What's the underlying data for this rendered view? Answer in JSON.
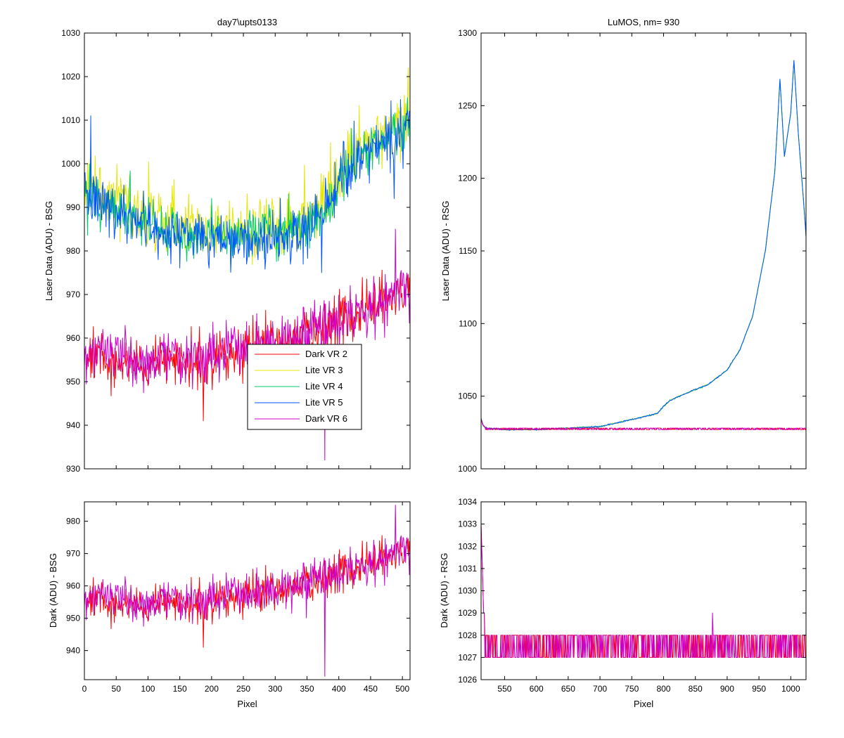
{
  "colors": {
    "background": "#ffffff",
    "axes": "#000000",
    "Dark VR 2": "#ff0000",
    "Lite VR 3": "#e6e600",
    "Lite VR 4": "#00cc66",
    "Lite VR 5": "#0055ff",
    "Dark VR 6": "#cc00cc",
    "mixed_dark": "#ee0077"
  },
  "chart_data": [
    {
      "id": "top-left",
      "type": "line",
      "title": "day7\\upts0133",
      "xlabel": "",
      "ylabel": "Laser Data (ADU) - BSG",
      "xlim": [
        0,
        512
      ],
      "ylim": [
        930,
        1030
      ],
      "xticks": [
        0,
        50,
        100,
        150,
        200,
        250,
        300,
        350,
        400,
        450,
        500
      ],
      "yticks": [
        930,
        940,
        950,
        960,
        970,
        980,
        990,
        1000,
        1010,
        1020,
        1030
      ],
      "show_xtick_labels": false,
      "grid": false,
      "legend": {
        "placement": "center",
        "entries": [
          "Dark VR 2",
          "Lite VR 3",
          "Lite VR 4",
          "Lite VR 5",
          "Dark VR 6"
        ]
      },
      "series": [
        {
          "name": "Dark VR 2",
          "profile": {
            "x": [
              0,
              100,
              200,
              300,
              350,
              400,
              450,
              500,
              512
            ],
            "y": [
              956,
              954,
              955,
              959,
              961,
              963,
              967,
              970,
              971
            ]
          },
          "noise": 5
        },
        {
          "name": "Lite VR 3",
          "profile": {
            "x": [
              0,
              50,
              100,
              150,
              200,
              250,
              300,
              350,
              380,
              400,
              450,
              500,
              512
            ],
            "y": [
              995,
              992,
              988,
              986,
              985,
              985,
              986,
              988,
              992,
              998,
              1004,
              1010,
              1012
            ]
          },
          "noise": 6
        },
        {
          "name": "Lite VR 4",
          "profile": {
            "x": [
              0,
              50,
              100,
              150,
              200,
              250,
              300,
              350,
              380,
              400,
              450,
              500,
              512
            ],
            "y": [
              993,
              990,
              986,
              984,
              983,
              983,
              984,
              986,
              990,
              996,
              1003,
              1008,
              1010
            ]
          },
          "noise": 5
        },
        {
          "name": "Lite VR 5",
          "profile": {
            "x": [
              0,
              50,
              100,
              150,
              200,
              250,
              300,
              350,
              380,
              400,
              450,
              500,
              512
            ],
            "y": [
              993,
              990,
              986,
              983,
              982,
              982,
              983,
              985,
              990,
              997,
              1003,
              1008,
              1010
            ]
          },
          "noise": 5
        },
        {
          "name": "Dark VR 6",
          "profile": {
            "x": [
              0,
              100,
              200,
              300,
              350,
              400,
              450,
              500,
              512
            ],
            "y": [
              957,
              955,
              956,
              959,
              961,
              964,
              967,
              971,
              972
            ]
          },
          "noise": 5
        }
      ],
      "annotations": {
        "spikes": [
          {
            "series": "Dark VR 6",
            "x": 378,
            "y": 932
          },
          {
            "series": "Dark VR 2",
            "x": 187,
            "y": 941
          },
          {
            "series": "Dark VR 6",
            "x": 489,
            "y": 985
          },
          {
            "series": "Lite VR 5",
            "x": 10,
            "y": 1011
          },
          {
            "series": "Lite VR 5",
            "x": 373,
            "y": 975
          },
          {
            "series": "Lite VR 5",
            "x": 487,
            "y": 992
          },
          {
            "series": "Lite VR 3",
            "x": 509,
            "y": 1022
          }
        ]
      }
    },
    {
      "id": "top-right",
      "type": "line",
      "title": "LuMOS, nm= 930",
      "xlabel": "",
      "ylabel": "Laser Data (ADU) - RSG",
      "xlim": [
        513,
        1024
      ],
      "ylim": [
        1000,
        1300
      ],
      "xticks": [
        550,
        600,
        650,
        700,
        750,
        800,
        850,
        900,
        950,
        1000
      ],
      "yticks": [
        1000,
        1050,
        1100,
        1150,
        1200,
        1250,
        1300
      ],
      "show_xtick_labels": false,
      "grid": false,
      "series": [
        {
          "name": "Lite VR 3",
          "profile": {
            "x": [
              513,
              516,
              520,
              550,
              600,
              650,
              700,
              740,
              790,
              800,
              810,
              830,
              870,
              900,
              920,
              940,
              960,
              975,
              983,
              990,
              1000,
              1005,
              1012,
              1020,
              1024
            ],
            "y": [
              1035,
              1030,
              1028,
              1027,
              1027,
              1028,
              1029,
              1033,
              1038,
              1043,
              1047,
              1051,
              1058,
              1068,
              1082,
              1105,
              1150,
              1205,
              1268,
              1215,
              1245,
              1281,
              1230,
              1185,
              1160
            ]
          },
          "noise": 0.4
        },
        {
          "name": "Lite VR 4",
          "profile": {
            "x": [
              513,
              516,
              520,
              550,
              600,
              650,
              700,
              740,
              790,
              800,
              810,
              830,
              870,
              900,
              920,
              940,
              960,
              975,
              983,
              990,
              1000,
              1005,
              1012,
              1020,
              1024
            ],
            "y": [
              1035,
              1030,
              1028,
              1027,
              1027,
              1028,
              1029,
              1033,
              1038,
              1043,
              1047,
              1051,
              1058,
              1068,
              1082,
              1105,
              1150,
              1205,
              1268,
              1215,
              1245,
              1281,
              1230,
              1185,
              1160
            ]
          },
          "noise": 0.4
        },
        {
          "name": "Lite VR 5",
          "profile": {
            "x": [
              513,
              516,
              520,
              550,
              600,
              650,
              700,
              740,
              790,
              800,
              810,
              830,
              870,
              900,
              920,
              940,
              960,
              975,
              983,
              990,
              1000,
              1005,
              1012,
              1020,
              1024
            ],
            "y": [
              1035,
              1030,
              1028,
              1027,
              1027,
              1028,
              1029,
              1033,
              1038,
              1043,
              1047,
              1051,
              1058,
              1068,
              1082,
              1105,
              1150,
              1205,
              1268,
              1215,
              1245,
              1281,
              1230,
              1185,
              1160
            ]
          },
          "noise": 0.4
        },
        {
          "name": "Dark VR 2",
          "profile": {
            "x": [
              513,
              516,
              520,
              530,
              1024
            ],
            "y": [
              1034,
              1030,
              1028,
              1027.5,
              1027.5
            ]
          },
          "noise": 0.5,
          "quantize": true
        },
        {
          "name": "Dark VR 6",
          "profile": {
            "x": [
              513,
              516,
              520,
              530,
              1024
            ],
            "y": [
              1034,
              1030,
              1028,
              1027.5,
              1027.5
            ]
          },
          "noise": 0.5,
          "quantize": true
        }
      ]
    },
    {
      "id": "bottom-left",
      "type": "line",
      "title": "",
      "xlabel": "Pixel",
      "ylabel": "Dark (ADU) - BSG",
      "xlim": [
        0,
        512
      ],
      "ylim": [
        931,
        986
      ],
      "xticks": [
        0,
        50,
        100,
        150,
        200,
        250,
        300,
        350,
        400,
        450,
        500
      ],
      "yticks": [
        940,
        950,
        960,
        970,
        980
      ],
      "show_xtick_labels": true,
      "grid": false,
      "series": [
        {
          "name": "Dark VR 2",
          "profile": {
            "x": [
              0,
              100,
              200,
              300,
              350,
              400,
              450,
              500,
              512
            ],
            "y": [
              956,
              954,
              955,
              959,
              961,
              963,
              967,
              970,
              971
            ]
          },
          "noise": 5
        },
        {
          "name": "Dark VR 6",
          "profile": {
            "x": [
              0,
              100,
              200,
              300,
              350,
              400,
              450,
              500,
              512
            ],
            "y": [
              957,
              955,
              956,
              959,
              961,
              964,
              967,
              971,
              972
            ]
          },
          "noise": 5
        }
      ],
      "annotations": {
        "spikes": [
          {
            "series": "Dark VR 6",
            "x": 378,
            "y": 932
          },
          {
            "series": "Dark VR 2",
            "x": 187,
            "y": 941
          },
          {
            "series": "Dark VR 6",
            "x": 489,
            "y": 985
          }
        ]
      }
    },
    {
      "id": "bottom-right",
      "type": "line",
      "title": "",
      "xlabel": "Pixel",
      "ylabel": "Dark (ADU) - RSG",
      "xlim": [
        513,
        1024
      ],
      "ylim": [
        1026,
        1034
      ],
      "xticks": [
        550,
        600,
        650,
        700,
        750,
        800,
        850,
        900,
        950,
        1000
      ],
      "yticks": [
        1026,
        1027,
        1028,
        1029,
        1030,
        1031,
        1032,
        1033,
        1034
      ],
      "show_xtick_labels": true,
      "grid": false,
      "series": [
        {
          "name": "Dark VR 2",
          "profile": {
            "x": [
              513,
              515,
              517,
              519,
              522,
              1024
            ],
            "y": [
              1033,
              1031,
              1029,
              1028,
              1027.5,
              1027.5
            ]
          },
          "noise": 0.5,
          "quantize": true
        },
        {
          "name": "Dark VR 6",
          "profile": {
            "x": [
              513,
              515,
              517,
              519,
              522,
              1024
            ],
            "y": [
              1033,
              1031,
              1029,
              1028,
              1027.5,
              1027.5
            ]
          },
          "noise": 0.5,
          "quantize": true
        }
      ],
      "annotations": {
        "spikes": [
          {
            "series": "Dark VR 6",
            "x": 877,
            "y": 1029
          }
        ]
      }
    }
  ]
}
